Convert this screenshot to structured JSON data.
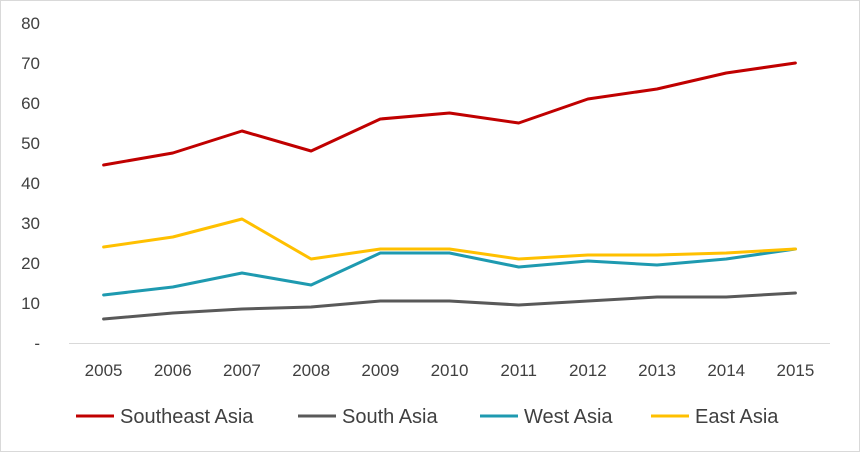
{
  "chart_data": {
    "type": "line",
    "title": "",
    "xlabel": "",
    "ylabel": "",
    "ylim": [
      0,
      80
    ],
    "yticks": [
      {
        "value": 0,
        "label": "-"
      },
      {
        "value": 10,
        "label": "10"
      },
      {
        "value": 20,
        "label": "20"
      },
      {
        "value": 30,
        "label": "30"
      },
      {
        "value": 40,
        "label": "40"
      },
      {
        "value": 50,
        "label": "50"
      },
      {
        "value": 60,
        "label": "60"
      },
      {
        "value": 70,
        "label": "70"
      },
      {
        "value": 80,
        "label": "80"
      }
    ],
    "categories": [
      "2005",
      "2006",
      "2007",
      "2008",
      "2009",
      "2010",
      "2011",
      "2012",
      "2013",
      "2014",
      "2015"
    ],
    "grid": false,
    "legend_position": "bottom",
    "series": [
      {
        "name": "Southeast Asia",
        "color": "#c00000",
        "values": [
          44.5,
          47.5,
          53,
          48,
          56,
          57.5,
          55,
          61,
          63.5,
          67.5,
          70
        ]
      },
      {
        "name": "South Asia",
        "color": "#595959",
        "values": [
          6,
          7.5,
          8.5,
          9,
          10.5,
          10.5,
          9.5,
          10.5,
          11.5,
          11.5,
          12.5
        ]
      },
      {
        "name": "West Asia",
        "color": "#1e9ab0",
        "values": [
          12,
          14,
          17.5,
          14.5,
          22.5,
          22.5,
          19,
          20.5,
          19.5,
          21,
          23.5
        ]
      },
      {
        "name": "East Asia",
        "color": "#ffc000",
        "values": [
          24,
          26.5,
          31,
          21,
          23.5,
          23.5,
          21,
          22,
          22,
          22.5,
          23.5
        ]
      }
    ]
  }
}
